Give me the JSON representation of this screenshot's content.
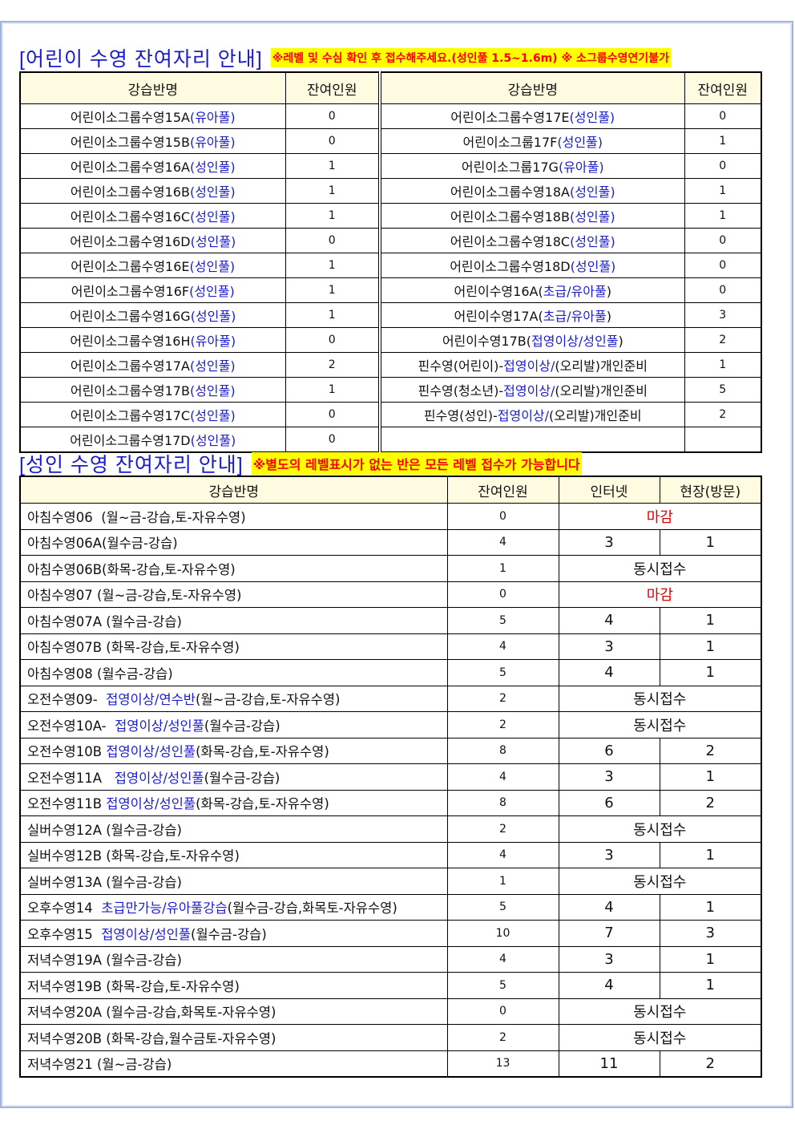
{
  "kids": {
    "title": "[어린이 수영 잔여자리 안내]",
    "note": "※레벨 및 수심 확인 후 접수해주세요.(성인풀 1.5~1.6m) ※ 소그룹수영연기불가",
    "headers": [
      "강습반명",
      "잔여인원",
      "강습반명",
      "잔여인원"
    ],
    "left": [
      {
        "name": [
          "어린이소그룹수영15A",
          "(유아풀)",
          ""
        ],
        "remaining": "0"
      },
      {
        "name": [
          "어린이소그룹수영15B",
          "(유아풀)",
          ""
        ],
        "remaining": "0"
      },
      {
        "name": [
          "어린이소그룹수영16A",
          "(성인풀)",
          ""
        ],
        "remaining": "1"
      },
      {
        "name": [
          "어린이소그룹수영16B",
          "(성인풀)",
          ""
        ],
        "remaining": "1"
      },
      {
        "name": [
          "어린이소그룹수영16C",
          "(성인풀)",
          ""
        ],
        "remaining": "1"
      },
      {
        "name": [
          "어린이소그룹수영16D",
          "(성인풀)",
          ""
        ],
        "remaining": "0"
      },
      {
        "name": [
          "어린이소그룹수영16E",
          "(성인풀)",
          ""
        ],
        "remaining": "1"
      },
      {
        "name": [
          "어린이소그룹수영16F",
          "(성인풀)",
          ""
        ],
        "remaining": "1"
      },
      {
        "name": [
          "어린이소그룹수영16G",
          "(성인풀)",
          ""
        ],
        "remaining": "1"
      },
      {
        "name": [
          "어린이소그룹수영16H",
          "(유아풀)",
          ""
        ],
        "remaining": "0"
      },
      {
        "name": [
          "어린이소그룹수영17A",
          "(성인풀)",
          ""
        ],
        "remaining": "2"
      },
      {
        "name": [
          "어린이소그룹수영17B",
          "(성인풀)",
          ""
        ],
        "remaining": "1"
      },
      {
        "name": [
          "어린이소그룹수영17C",
          "(성인풀)",
          ""
        ],
        "remaining": "0"
      },
      {
        "name": [
          "어린이소그룹수영17D",
          "(성인풀)",
          ""
        ],
        "remaining": "0"
      }
    ],
    "right": [
      {
        "name": [
          "어린이소그룹수영17E",
          "(성인풀)",
          ""
        ],
        "remaining": "0"
      },
      {
        "name": [
          "어린이소그룹17F",
          "(성인풀)",
          ""
        ],
        "remaining": "1"
      },
      {
        "name": [
          "어린이소그룹17G",
          "(유아풀)",
          ""
        ],
        "remaining": "0"
      },
      {
        "name": [
          "어린이소그룹수영18A",
          "(성인풀)",
          ""
        ],
        "remaining": "1"
      },
      {
        "name": [
          "어린이소그룹수영18B",
          "(성인풀)",
          ""
        ],
        "remaining": "1"
      },
      {
        "name": [
          "어린이소그룹수영18C",
          "(성인풀)",
          ""
        ],
        "remaining": "0"
      },
      {
        "name": [
          "어린이소그룹수영18D",
          "(성인풀)",
          ""
        ],
        "remaining": "0"
      },
      {
        "name": [
          "어린이수영16A(",
          "초급/유아풀",
          ")"
        ],
        "remaining": "0"
      },
      {
        "name": [
          "어린이수영17A(",
          "초급/유아풀",
          ")"
        ],
        "remaining": "3"
      },
      {
        "name": [
          "어린이수영17B(",
          "접영이상/성인풀",
          ")"
        ],
        "remaining": "2"
      },
      {
        "name": [
          "핀수영(어린이)-",
          "접영이상/",
          "(오리발)개인준비"
        ],
        "remaining": "1"
      },
      {
        "name": [
          "핀수영(청소년)-",
          "접영이상/",
          "(오리발)개인준비"
        ],
        "remaining": "5"
      },
      {
        "name": [
          "핀수영(성인)-",
          "접영이상/",
          "(오리발)개인준비"
        ],
        "remaining": "2"
      },
      {
        "name": [
          "",
          "",
          ""
        ],
        "remaining": ""
      }
    ]
  },
  "adults": {
    "title": "[성인 수영 잔여자리 안내]",
    "note": "※별도의 레벨표시가 없는 반은 모든 레벨 접수가 가능합니다",
    "headers": [
      "강습반명",
      "잔여인원",
      "인터넷",
      "현장(방문)"
    ],
    "rows": [
      {
        "name": [
          "아침수영06  (월~금-강습,토-자유수영)",
          "",
          ""
        ],
        "remaining": "0",
        "merged": "마감",
        "status": "closed"
      },
      {
        "name": [
          "아침수영06A(월수금-강습)",
          "",
          ""
        ],
        "remaining": "4",
        "internet": "3",
        "onsite": "1"
      },
      {
        "name": [
          "아침수영06B(화목-강습,토-자유수영)",
          "",
          ""
        ],
        "remaining": "1",
        "merged": "동시접수"
      },
      {
        "name": [
          "아침수영07 (월~금-강습,토-자유수영)",
          "",
          ""
        ],
        "remaining": "0",
        "merged": "마감",
        "status": "closed"
      },
      {
        "name": [
          "아침수영07A (월수금-강습)",
          "",
          ""
        ],
        "remaining": "5",
        "internet": "4",
        "onsite": "1"
      },
      {
        "name": [
          "아침수영07B (화목-강습,토-자유수영)",
          "",
          ""
        ],
        "remaining": "4",
        "internet": "3",
        "onsite": "1"
      },
      {
        "name": [
          "아침수영08 (월수금-강습)",
          "",
          ""
        ],
        "remaining": "5",
        "internet": "4",
        "onsite": "1"
      },
      {
        "name": [
          "오전수영09-  ",
          "접영이상/연수반",
          "(월~금-강습,토-자유수영)"
        ],
        "remaining": "2",
        "merged": "동시접수"
      },
      {
        "name": [
          "오전수영10A-  ",
          "접영이상/성인풀",
          "(월수금-강습)"
        ],
        "remaining": "2",
        "merged": "동시접수"
      },
      {
        "name": [
          "오전수영10B ",
          "접영이상/성인풀",
          "(화목-강습,토-자유수영)"
        ],
        "remaining": "8",
        "internet": "6",
        "onsite": "2"
      },
      {
        "name": [
          "오전수영11A   ",
          "접영이상/성인풀",
          "(월수금-강습)"
        ],
        "remaining": "4",
        "internet": "3",
        "onsite": "1"
      },
      {
        "name": [
          "오전수영11B ",
          "접영이상/성인풀",
          "(화목-강습,토-자유수영)"
        ],
        "remaining": "8",
        "internet": "6",
        "onsite": "2"
      },
      {
        "name": [
          "실버수영12A (월수금-강습)",
          "",
          ""
        ],
        "remaining": "2",
        "merged": "동시접수"
      },
      {
        "name": [
          "실버수영12B (화목-강습,토-자유수영)",
          "",
          ""
        ],
        "remaining": "4",
        "internet": "3",
        "onsite": "1"
      },
      {
        "name": [
          "실버수영13A (월수금-강습)",
          "",
          ""
        ],
        "remaining": "1",
        "merged": "동시접수"
      },
      {
        "name": [
          "오후수영14  ",
          "초급만가능/유아풀강습",
          "(월수금-강습,화목토-자유수영)"
        ],
        "remaining": "5",
        "internet": "4",
        "onsite": "1"
      },
      {
        "name": [
          "오후수영15  ",
          "접영이상/성인풀",
          "(월수금-강습)"
        ],
        "remaining": "10",
        "internet": "7",
        "onsite": "3"
      },
      {
        "name": [
          "저녁수영19A (월수금-강습)",
          "",
          ""
        ],
        "remaining": "4",
        "internet": "3",
        "onsite": "1"
      },
      {
        "name": [
          "저녁수영19B (화목-강습,토-자유수영)",
          "",
          ""
        ],
        "remaining": "5",
        "internet": "4",
        "onsite": "1"
      },
      {
        "name": [
          "저녁수영20A (월수금-강습,화목토-자유수영)",
          "",
          ""
        ],
        "remaining": "0",
        "merged": "동시접수"
      },
      {
        "name": [
          "저녁수영20B (화목-강습,월수금토-자유수영)",
          "",
          ""
        ],
        "remaining": "2",
        "merged": "동시접수"
      },
      {
        "name": [
          "저녁수영21 (월~금-강습)",
          "",
          ""
        ],
        "remaining": "13",
        "internet": "11",
        "onsite": "2"
      }
    ]
  },
  "colors": {
    "title": "#1a1ac8",
    "highlight_text": "#1c1cd0",
    "closed": "#e00000",
    "note_bg": "#ffff00",
    "note_text": "#ff0000",
    "header_bg": "#fffbe0"
  }
}
